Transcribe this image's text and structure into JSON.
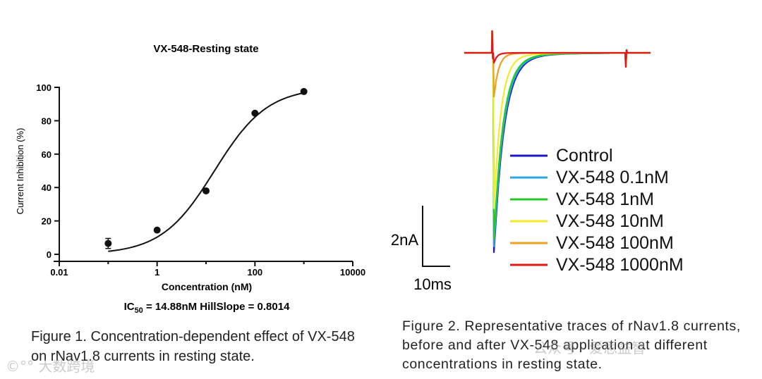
{
  "chart_data": [
    {
      "type": "scatter",
      "title": "VX-548-Resting state",
      "xlabel": "Concentration (nM)",
      "ylabel": "Current Inhibition (%)",
      "x_scale": "log",
      "xlim": [
        0.01,
        10000
      ],
      "ylim": [
        0,
        100
      ],
      "x_ticks": [
        0.01,
        1,
        100,
        10000
      ],
      "x_tick_labels": [
        "0.01",
        "1",
        "100",
        "10000"
      ],
      "y_ticks": [
        0,
        20,
        40,
        60,
        80,
        100
      ],
      "y_tick_labels": [
        "0",
        "20",
        "40",
        "60",
        "80",
        "100"
      ],
      "points": [
        {
          "x": 0.1,
          "y": 6.5,
          "err": 3
        },
        {
          "x": 1,
          "y": 14.5,
          "err": 0
        },
        {
          "x": 10,
          "y": 38,
          "err": 0
        },
        {
          "x": 100,
          "y": 84.5,
          "err": 0
        },
        {
          "x": 1000,
          "y": 97.5,
          "err": 0
        }
      ],
      "fit": {
        "ic50": 14.88,
        "hill": 0.8014
      },
      "fit_label_prefix": "IC",
      "fit_label_sub": "50",
      "fit_label_rest": " = 14.88nM HillSlope = 0.8014"
    },
    {
      "type": "line",
      "title": "",
      "scale_bar": {
        "y_label": "2nA",
        "x_label": "10ms"
      },
      "series": [
        {
          "name": "Control",
          "color": "#1a1acc",
          "peak_depth": 1.0,
          "tau": 1.0
        },
        {
          "name": "VX-548 0.1nM",
          "color": "#2aa8e6",
          "peak_depth": 0.97,
          "tau": 0.96
        },
        {
          "name": "VX-548 1nM",
          "color": "#22cc22",
          "peak_depth": 0.93,
          "tau": 0.92
        },
        {
          "name": "VX-548 10nM",
          "color": "#f2ea2a",
          "peak_depth": 0.78,
          "tau": 0.7
        },
        {
          "name": "VX-548 100nM",
          "color": "#f0a020",
          "peak_depth": 0.22,
          "tau": 0.45
        },
        {
          "name": "VX-548 1000nM",
          "color": "#e01818",
          "peak_depth": 0.05,
          "tau": 0.3
        }
      ]
    }
  ],
  "captions": {
    "fig1": "Figure 1. Concentration-dependent effect of VX-548 on rNav1.8 currents in resting state.",
    "fig2": "Figure 2. Representative traces of rNav1.8 currents, before and after VX-548 application at different concentrations in resting state."
  },
  "watermarks": {
    "left": "©°° 大数跨境",
    "right": "公众号 · 爱思益智"
  }
}
